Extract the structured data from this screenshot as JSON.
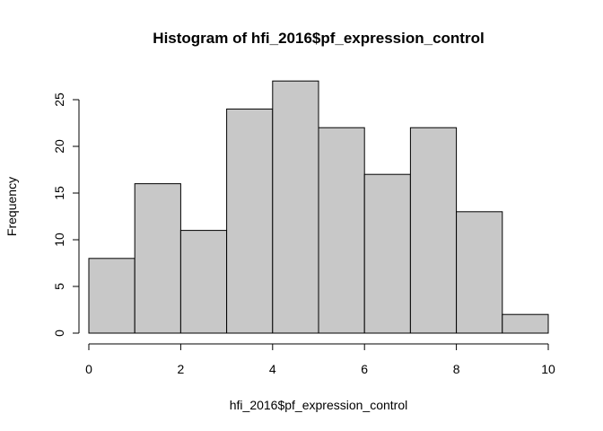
{
  "chart_data": {
    "type": "bar",
    "title": "Histogram of hfi_2016$pf_expression_control",
    "xlabel": "hfi_2016$pf_expression_control",
    "ylabel": "Frequency",
    "bins": [
      {
        "x0": 0,
        "x1": 1,
        "count": 8
      },
      {
        "x0": 1,
        "x1": 2,
        "count": 16
      },
      {
        "x0": 2,
        "x1": 3,
        "count": 11
      },
      {
        "x0": 3,
        "x1": 4,
        "count": 24
      },
      {
        "x0": 4,
        "x1": 5,
        "count": 27
      },
      {
        "x0": 5,
        "x1": 6,
        "count": 22
      },
      {
        "x0": 6,
        "x1": 7,
        "count": 17
      },
      {
        "x0": 7,
        "x1": 8,
        "count": 22
      },
      {
        "x0": 8,
        "x1": 9,
        "count": 13
      },
      {
        "x0": 9,
        "x1": 10,
        "count": 2
      }
    ],
    "xlim": [
      0,
      10
    ],
    "ylim": [
      0,
      27
    ],
    "x_ticks": [
      0,
      2,
      4,
      6,
      8,
      10
    ],
    "y_ticks": [
      0,
      5,
      10,
      15,
      20,
      25
    ],
    "bar_fill": "#c8c8c8",
    "bar_stroke": "#000000",
    "grid": false,
    "legend": "none"
  }
}
